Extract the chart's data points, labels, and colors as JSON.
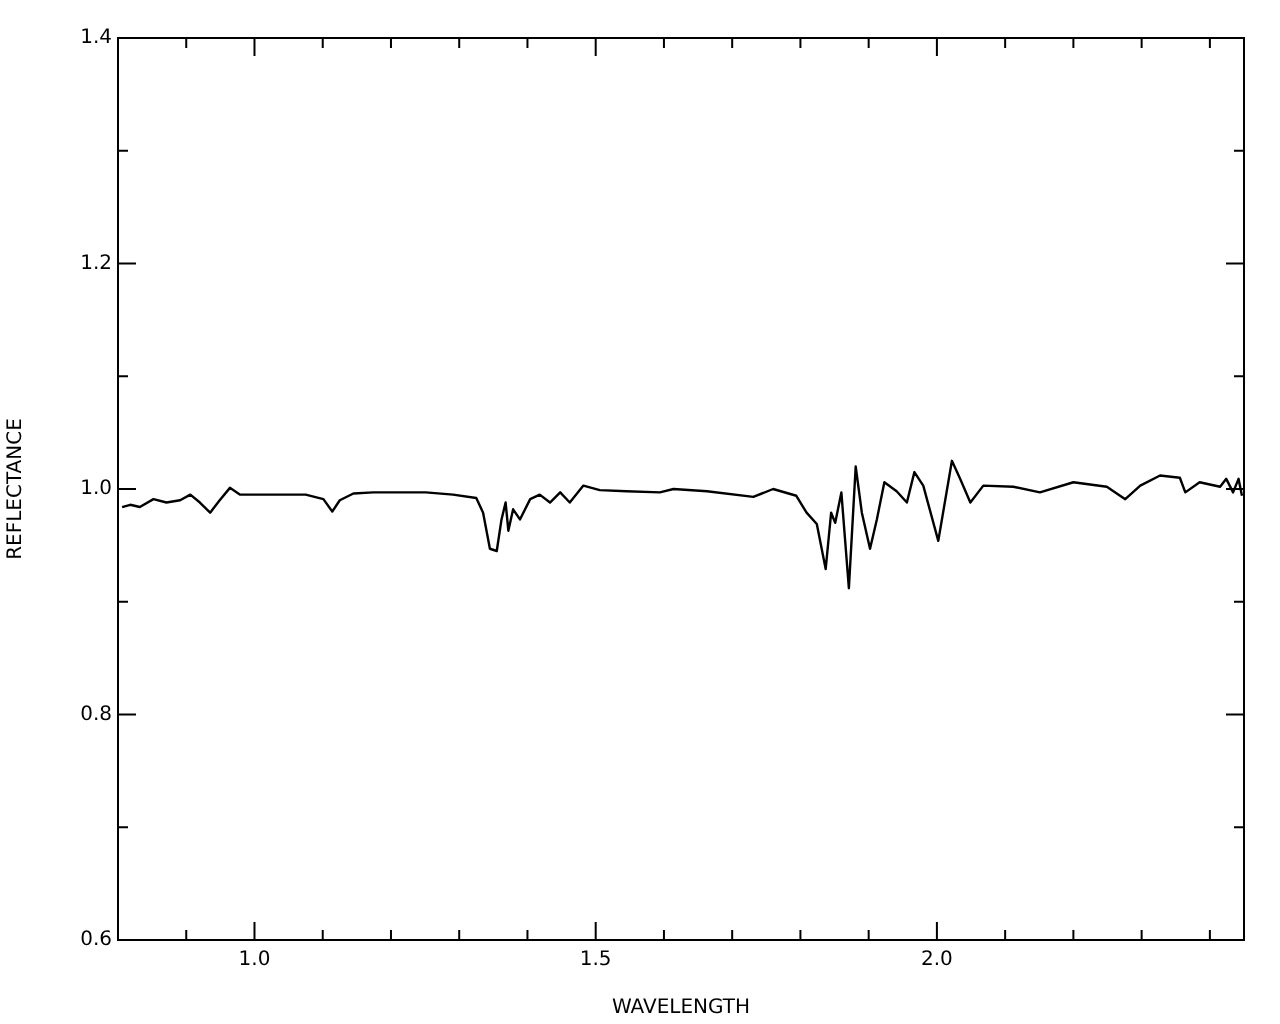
{
  "chart_data": {
    "type": "line",
    "xlabel": "WAVELENGTH",
    "ylabel": "REFLECTANCE",
    "xlim": [
      0.8,
      2.45
    ],
    "ylim": [
      0.6,
      1.4
    ],
    "xticks": [
      {
        "value": 0.9,
        "label": null
      },
      {
        "value": 1,
        "label": "1.0"
      },
      {
        "value": 1.1,
        "label": null
      },
      {
        "value": 1.2,
        "label": null
      },
      {
        "value": 1.3,
        "label": null
      },
      {
        "value": 1.4,
        "label": null
      },
      1.5,
      {
        "value": 1.6,
        "label": null
      },
      {
        "value": 1.7,
        "label": null
      },
      {
        "value": 1.8,
        "label": null
      },
      {
        "value": 1.9,
        "label": null
      },
      {
        "value": 2,
        "label": "2.0"
      },
      {
        "value": 2.1,
        "label": null
      },
      {
        "value": 2.2,
        "label": null
      },
      {
        "value": 2.3,
        "label": null
      },
      {
        "value": 2.4,
        "label": null
      }
    ],
    "yticks": [
      0.6,
      {
        "value": 0.7,
        "label": null
      },
      0.8,
      {
        "value": 0.9,
        "label": null
      },
      {
        "value": 1,
        "label": "1.0"
      },
      {
        "value": 1.1,
        "label": null
      },
      1.2,
      {
        "value": 1.3,
        "label": null
      },
      1.4
    ],
    "grid": false,
    "legend": false,
    "marker": "none",
    "line_style": "solid",
    "series": [
      {
        "color": "#000000",
        "x": [
          0.806,
          0.818,
          0.832,
          0.852,
          0.871,
          0.891,
          0.906,
          0.92,
          0.935,
          0.949,
          0.964,
          0.979,
          0.998,
          1.037,
          1.075,
          1.101,
          1.114,
          1.125,
          1.145,
          1.174,
          1.213,
          1.251,
          1.291,
          1.325,
          1.335,
          1.345,
          1.355,
          1.362,
          1.368,
          1.372,
          1.379,
          1.389,
          1.404,
          1.418,
          1.433,
          1.448,
          1.462,
          1.482,
          1.506,
          1.545,
          1.594,
          1.614,
          1.663,
          1.731,
          1.76,
          1.794,
          1.809,
          1.824,
          1.837,
          1.845,
          1.851,
          1.86,
          1.871,
          1.881,
          1.89,
          1.902,
          1.912,
          1.923,
          1.941,
          1.956,
          1.967,
          1.98,
          2.002,
          2.022,
          2.034,
          2.049,
          2.068,
          2.112,
          2.151,
          2.2,
          2.249,
          2.276,
          2.298,
          2.327,
          2.356,
          2.364,
          2.385,
          2.415,
          2.424,
          2.434,
          2.442,
          2.447
        ],
        "values": [
          0.984,
          0.986,
          0.984,
          0.991,
          0.988,
          0.99,
          0.995,
          0.988,
          0.979,
          0.99,
          1.001,
          0.995,
          0.995,
          0.995,
          0.995,
          0.991,
          0.98,
          0.99,
          0.996,
          0.997,
          0.997,
          0.997,
          0.995,
          0.992,
          0.979,
          0.947,
          0.945,
          0.973,
          0.988,
          0.963,
          0.982,
          0.973,
          0.991,
          0.995,
          0.988,
          0.997,
          0.988,
          1.003,
          0.999,
          0.998,
          0.997,
          1.0,
          0.998,
          0.993,
          1.0,
          0.994,
          0.979,
          0.969,
          0.929,
          0.979,
          0.97,
          0.997,
          0.912,
          1.02,
          0.979,
          0.947,
          0.973,
          1.006,
          0.998,
          0.988,
          1.015,
          1.003,
          0.954,
          1.025,
          1.009,
          0.988,
          1.003,
          1.002,
          0.997,
          1.006,
          1.002,
          0.991,
          1.003,
          1.012,
          1.01,
          0.997,
          1.006,
          1.002,
          1.009,
          0.997,
          1.009,
          0.994
        ]
      }
    ]
  }
}
